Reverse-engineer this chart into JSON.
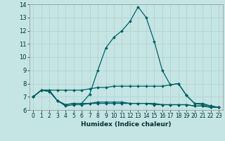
{
  "background_color": "#c5e5e5",
  "grid_color": "#b0d0d0",
  "line_color": "#006060",
  "xlabel": "Humidex (Indice chaleur)",
  "x": [
    0,
    1,
    2,
    3,
    4,
    5,
    6,
    7,
    8,
    9,
    10,
    11,
    12,
    13,
    14,
    15,
    16,
    17,
    18,
    19,
    20,
    21,
    22,
    23
  ],
  "line1_y": [
    7.0,
    7.5,
    7.5,
    6.7,
    6.4,
    6.5,
    6.5,
    7.2,
    9.0,
    10.7,
    11.5,
    12.0,
    12.7,
    13.8,
    13.0,
    11.2,
    9.0,
    7.9,
    8.0,
    7.1,
    6.5,
    6.4,
    6.3,
    6.2
  ],
  "line2_y": [
    7.0,
    7.5,
    7.5,
    7.5,
    7.5,
    7.5,
    7.5,
    7.6,
    7.7,
    7.7,
    7.8,
    7.8,
    7.8,
    7.8,
    7.8,
    7.8,
    7.8,
    7.9,
    8.0,
    7.1,
    6.5,
    6.5,
    6.3,
    6.2
  ],
  "line3_y": [
    7.0,
    7.5,
    7.4,
    6.7,
    6.4,
    6.5,
    6.5,
    6.5,
    6.6,
    6.6,
    6.6,
    6.6,
    6.5,
    6.5,
    6.5,
    6.5,
    6.4,
    6.4,
    6.4,
    6.4,
    6.3,
    6.3,
    6.2,
    6.2
  ],
  "line4_y": [
    7.0,
    7.5,
    7.4,
    6.7,
    6.3,
    6.4,
    6.4,
    6.5,
    6.5,
    6.5,
    6.5,
    6.5,
    6.5,
    6.5,
    6.5,
    6.4,
    6.4,
    6.4,
    6.4,
    6.4,
    6.3,
    6.3,
    6.2,
    6.2
  ],
  "ylim": [
    6,
    14
  ],
  "xlim": [
    -0.5,
    23.5
  ],
  "yticks": [
    6,
    7,
    8,
    9,
    10,
    11,
    12,
    13,
    14
  ],
  "xticks": [
    0,
    1,
    2,
    3,
    4,
    5,
    6,
    7,
    8,
    9,
    10,
    11,
    12,
    13,
    14,
    15,
    16,
    17,
    18,
    19,
    20,
    21,
    22,
    23
  ],
  "tick_fontsize": 5.5,
  "ytick_fontsize": 6.0,
  "xlabel_fontsize": 6.5,
  "marker_size": 2.0,
  "linewidth": 0.9
}
